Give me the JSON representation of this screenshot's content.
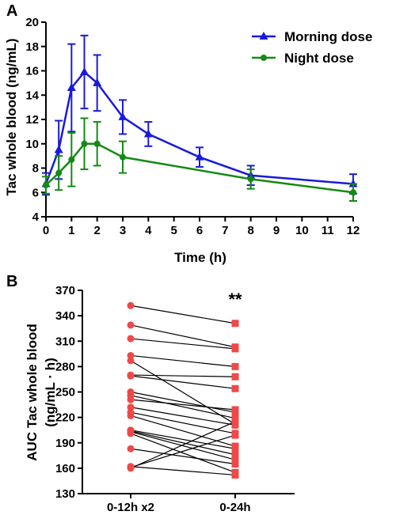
{
  "chart_data": [
    {
      "panel": "A",
      "type": "line",
      "xlabel": "Time (h)",
      "ylabel": "Tac whole blood (ng/mL)",
      "xlim": [
        0,
        12
      ],
      "ylim": [
        4,
        20
      ],
      "xticks": [
        0,
        1,
        2,
        3,
        4,
        5,
        6,
        7,
        8,
        9,
        10,
        11,
        12
      ],
      "yticks": [
        4,
        6,
        8,
        10,
        12,
        14,
        16,
        18,
        20
      ],
      "legend": "top-right",
      "series": [
        {
          "name": "Morning dose",
          "color": "#1a1adb",
          "marker": "triangle",
          "x": [
            0,
            0.5,
            1,
            1.5,
            2,
            3,
            4,
            6,
            8,
            12
          ],
          "y": [
            6.7,
            9.5,
            14.6,
            15.9,
            15.0,
            12.2,
            10.8,
            8.9,
            7.4,
            6.7
          ],
          "err": [
            0.9,
            2.4,
            3.6,
            3.0,
            2.3,
            1.4,
            1.0,
            0.8,
            0.8,
            0.8
          ]
        },
        {
          "name": "Night dose",
          "color": "#138a13",
          "marker": "circle",
          "x": [
            0,
            0.5,
            1,
            1.5,
            2,
            3,
            8,
            12
          ],
          "y": [
            6.6,
            7.6,
            8.7,
            10.0,
            10.0,
            8.9,
            7.1,
            6.0
          ],
          "err": [
            0.7,
            1.4,
            2.2,
            2.1,
            1.8,
            1.3,
            0.8,
            0.7
          ]
        }
      ]
    },
    {
      "panel": "B",
      "type": "scatter",
      "ylabel_line1": "AUC Tac whole blood",
      "ylabel_line2": "(ng/mL · h)",
      "categories": [
        "0-12h x2",
        "0-24h"
      ],
      "ylim": [
        130,
        370
      ],
      "yticks": [
        130,
        160,
        190,
        220,
        250,
        280,
        310,
        340,
        370
      ],
      "annotation": "**",
      "color": "#f04848",
      "pairs": [
        [
          352,
          331
        ],
        [
          329,
          303
        ],
        [
          313,
          301
        ],
        [
          293,
          280
        ],
        [
          287,
          212
        ],
        [
          270,
          268
        ],
        [
          269,
          254
        ],
        [
          250,
          226
        ],
        [
          246,
          219
        ],
        [
          241,
          229
        ],
        [
          232,
          211
        ],
        [
          226,
          201
        ],
        [
          222,
          186
        ],
        [
          205,
          183
        ],
        [
          204,
          176
        ],
        [
          203,
          170
        ],
        [
          201,
          155
        ],
        [
          183,
          165
        ],
        [
          161,
          199
        ],
        [
          160,
          215
        ],
        [
          162,
          152
        ]
      ]
    }
  ]
}
